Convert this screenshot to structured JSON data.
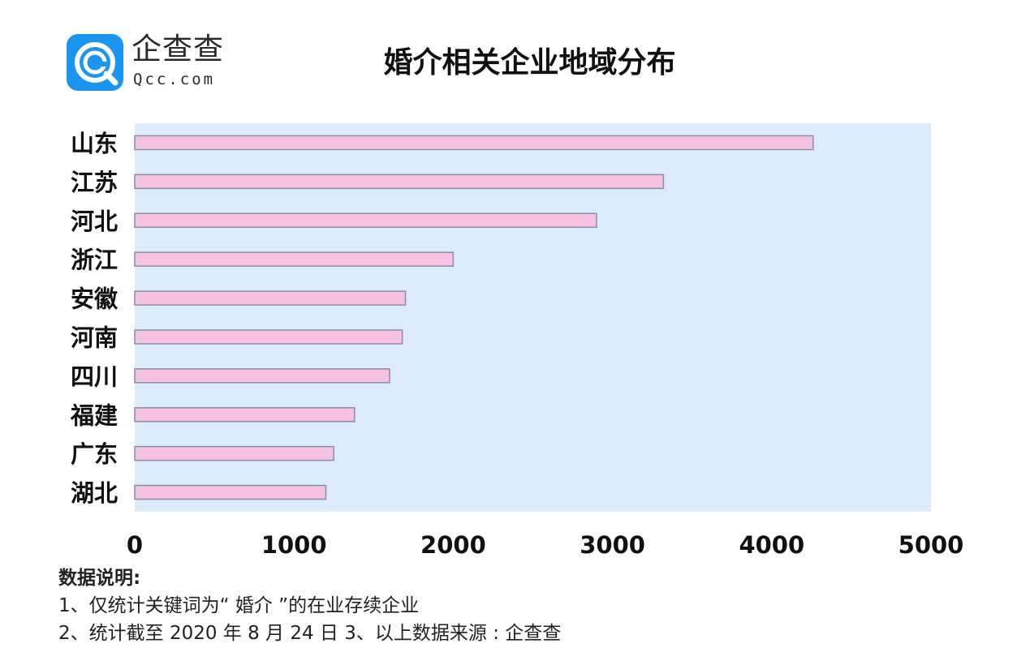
{
  "logo": {
    "brand": "企查查",
    "domain": "Qcc.com"
  },
  "colors": {
    "plot_background": "#dcecfb",
    "bar_fill": "#f5c2e1",
    "bar_stroke": "#8a8ea8",
    "logo_blue": "#1a96f0"
  },
  "chart_data": {
    "type": "bar",
    "orientation": "horizontal",
    "title": "婚介相关企业地域分布",
    "categories": [
      "山东",
      "江苏",
      "河北",
      "浙江",
      "安徽",
      "河南",
      "四川",
      "福建",
      "广东",
      "湖北"
    ],
    "values": [
      4260,
      3320,
      2900,
      2000,
      1700,
      1680,
      1600,
      1380,
      1250,
      1200
    ],
    "xlim": [
      0,
      5000
    ],
    "xticks": [
      "0",
      "1000",
      "2000",
      "3000",
      "4000",
      "5000"
    ],
    "grid": false,
    "legend": "none"
  },
  "notes": {
    "heading": "数据说明:",
    "line1": "1、仅统计关键词为“ 婚介 ”的在业存续企业",
    "line2": "2、统计截至 2020 年 8 月 24 日   3、以上数据来源 : 企查查"
  }
}
